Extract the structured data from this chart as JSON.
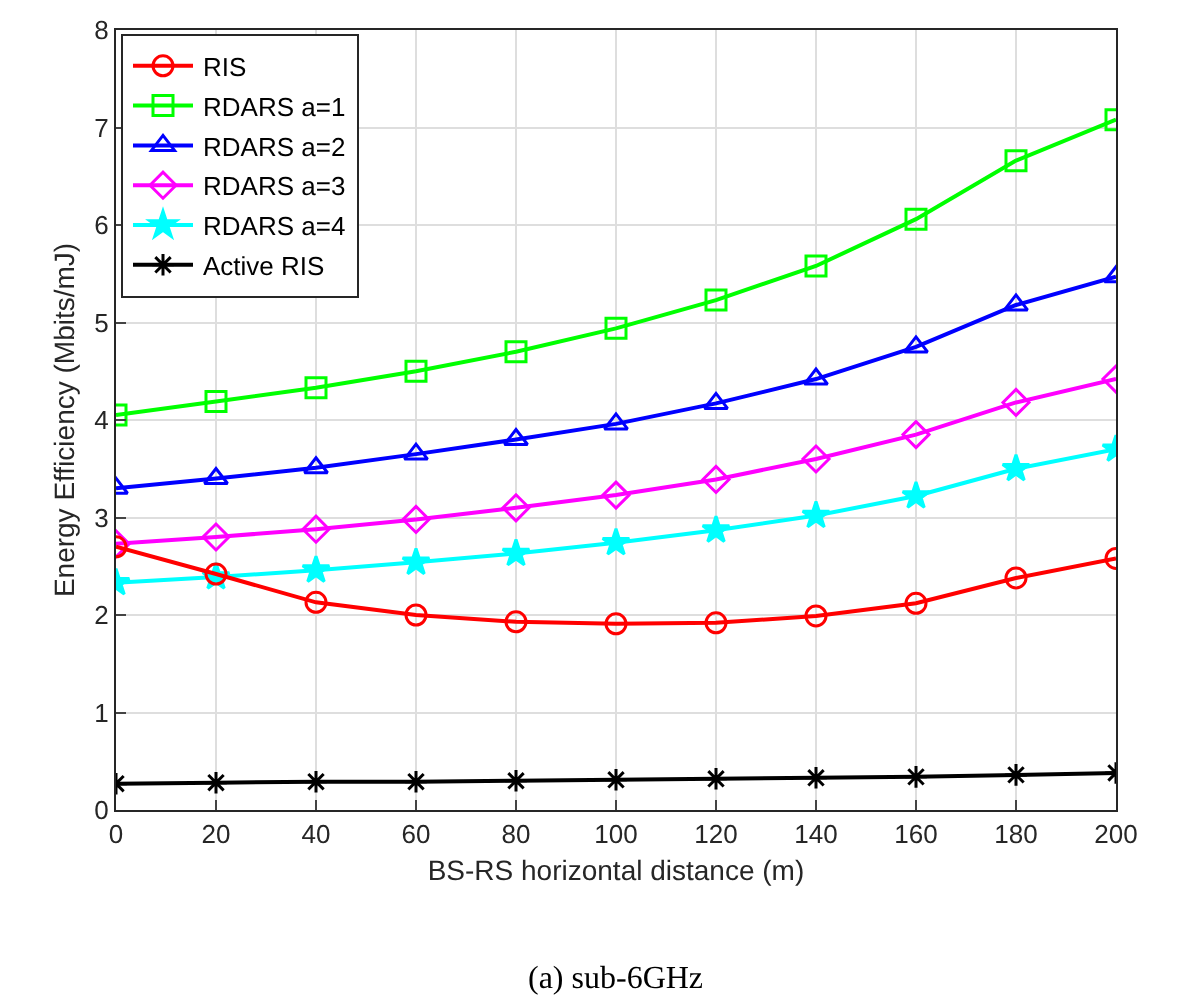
{
  "chart_data": {
    "type": "line",
    "xlabel": "BS-RS horizontal distance (m)",
    "ylabel": "Energy Efficiency (Mbits/mJ)",
    "x": [
      0,
      20,
      40,
      60,
      80,
      100,
      120,
      140,
      160,
      180,
      200
    ],
    "xlim": [
      0,
      200
    ],
    "xticks": [
      0,
      20,
      40,
      60,
      80,
      100,
      120,
      140,
      160,
      180,
      200
    ],
    "ylim": [
      0,
      8
    ],
    "yticks": [
      0,
      1,
      2,
      3,
      4,
      5,
      6,
      7,
      8
    ],
    "grid": true,
    "legend": "top left",
    "line_style": "solid",
    "annotations": [
      "(a) sub-6GHz"
    ],
    "series": [
      {
        "name": "RIS",
        "color": "#ff0000",
        "marker": "circle",
        "values": [
          2.7,
          2.42,
          2.13,
          2.0,
          1.93,
          1.91,
          1.92,
          1.99,
          2.12,
          2.38,
          2.58
        ]
      },
      {
        "name": "RDARS a=1",
        "color": "#00ff00",
        "marker": "square",
        "values": [
          4.05,
          4.19,
          4.33,
          4.5,
          4.7,
          4.94,
          5.23,
          5.58,
          6.06,
          6.66,
          7.08
        ]
      },
      {
        "name": "RDARS a=2",
        "color": "#0000ff",
        "marker": "triangle",
        "values": [
          3.3,
          3.4,
          3.51,
          3.65,
          3.8,
          3.96,
          4.17,
          4.42,
          4.75,
          5.18,
          5.47
        ]
      },
      {
        "name": "RDARS a=3",
        "color": "#ff00ff",
        "marker": "diamond",
        "values": [
          2.73,
          2.8,
          2.88,
          2.98,
          3.1,
          3.23,
          3.39,
          3.6,
          3.85,
          4.18,
          4.42
        ]
      },
      {
        "name": "RDARS a=4",
        "color": "#00ffff",
        "marker": "star",
        "values": [
          2.33,
          2.39,
          2.46,
          2.54,
          2.63,
          2.74,
          2.87,
          3.02,
          3.22,
          3.5,
          3.7
        ]
      },
      {
        "name": "Active RIS",
        "color": "#000000",
        "marker": "cross",
        "values": [
          0.27,
          0.28,
          0.29,
          0.29,
          0.3,
          0.31,
          0.32,
          0.33,
          0.34,
          0.36,
          0.38
        ]
      }
    ]
  }
}
